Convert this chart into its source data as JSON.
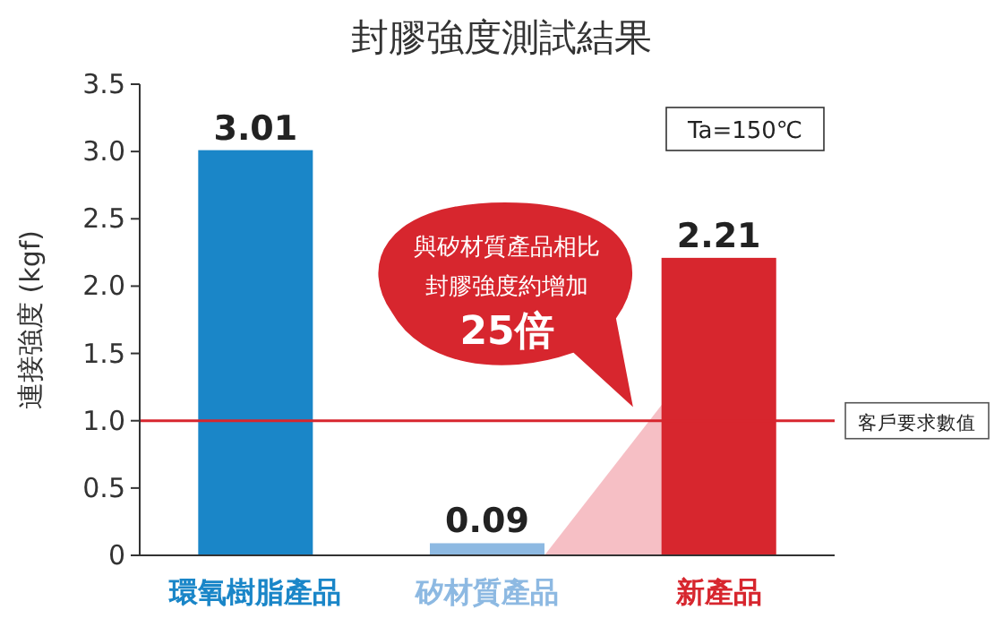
{
  "chart_data": {
    "type": "bar",
    "title": "封膠強度測試結果",
    "ylabel": "連接強度 (kgf)",
    "categories": [
      "環氧樹脂產品",
      "矽材質產品",
      "新產品"
    ],
    "values": [
      3.01,
      0.09,
      2.21
    ],
    "colors": [
      "#1a86c8",
      "#8db9e2",
      "#d7262e"
    ],
    "data_labels": true,
    "ylim": [
      0,
      3.5
    ],
    "yticks": [
      0,
      {
        "value": 0.5,
        "label": "0.5"
      },
      {
        "value": 1,
        "label": "1.0"
      },
      {
        "value": 1.5,
        "label": "1.5"
      },
      {
        "value": 2,
        "label": "2.0"
      },
      {
        "value": 2.5,
        "label": "2.5"
      },
      {
        "value": 3,
        "label": "3.0"
      },
      {
        "value": 3.5,
        "label": "3.5"
      }
    ],
    "ref_lines": [
      {
        "axis": "y",
        "value": 1,
        "label": "客戶要求數值",
        "color": "#d7262e"
      }
    ],
    "annotations": [
      "Ta=150℃",
      "與矽材質產品相比",
      "封膠強度約增加",
      "25倍"
    ],
    "grid": false
  }
}
